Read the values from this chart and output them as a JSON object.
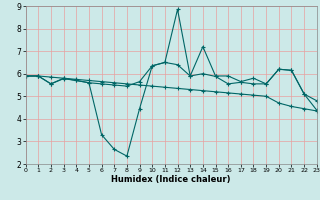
{
  "title": "",
  "xlabel": "Humidex (Indice chaleur)",
  "xlim": [
    0,
    23
  ],
  "ylim": [
    2,
    9
  ],
  "yticks": [
    2,
    3,
    4,
    5,
    6,
    7,
    8,
    9
  ],
  "xticks": [
    0,
    1,
    2,
    3,
    4,
    5,
    6,
    7,
    8,
    9,
    10,
    11,
    12,
    13,
    14,
    15,
    16,
    17,
    18,
    19,
    20,
    21,
    22,
    23
  ],
  "bg_color": "#cce9e8",
  "line_color": "#006666",
  "grid_color": "#ff9999",
  "line1_x": [
    0,
    1,
    2,
    3,
    4,
    5,
    6,
    7,
    8,
    9,
    10,
    11,
    12,
    13,
    14,
    15,
    16,
    17,
    18,
    19,
    20,
    21,
    22,
    23
  ],
  "line1_y": [
    5.9,
    5.9,
    5.85,
    5.8,
    5.75,
    5.7,
    5.65,
    5.6,
    5.55,
    5.5,
    5.45,
    5.4,
    5.35,
    5.3,
    5.25,
    5.2,
    5.15,
    5.1,
    5.05,
    5.0,
    4.7,
    4.55,
    4.45,
    4.35
  ],
  "line2_x": [
    0,
    1,
    2,
    3,
    4,
    5,
    6,
    7,
    8,
    9,
    10,
    11,
    12,
    13,
    14,
    15,
    16,
    17,
    18,
    19,
    20,
    21,
    22,
    23
  ],
  "line2_y": [
    5.9,
    5.9,
    5.55,
    5.8,
    5.7,
    5.6,
    3.3,
    2.65,
    2.35,
    4.45,
    6.35,
    6.5,
    8.85,
    5.9,
    7.2,
    5.9,
    5.9,
    5.65,
    5.8,
    5.55,
    6.2,
    6.15,
    5.1,
    4.8
  ],
  "line3_x": [
    0,
    1,
    2,
    3,
    4,
    5,
    6,
    7,
    8,
    9,
    10,
    11,
    12,
    13,
    14,
    15,
    16,
    17,
    18,
    19,
    20,
    21,
    22,
    23
  ],
  "line3_y": [
    5.9,
    5.9,
    5.55,
    5.78,
    5.7,
    5.6,
    5.55,
    5.5,
    5.45,
    5.65,
    6.35,
    6.5,
    6.4,
    5.9,
    6.0,
    5.88,
    5.55,
    5.62,
    5.55,
    5.55,
    6.2,
    6.15,
    5.1,
    4.38
  ]
}
